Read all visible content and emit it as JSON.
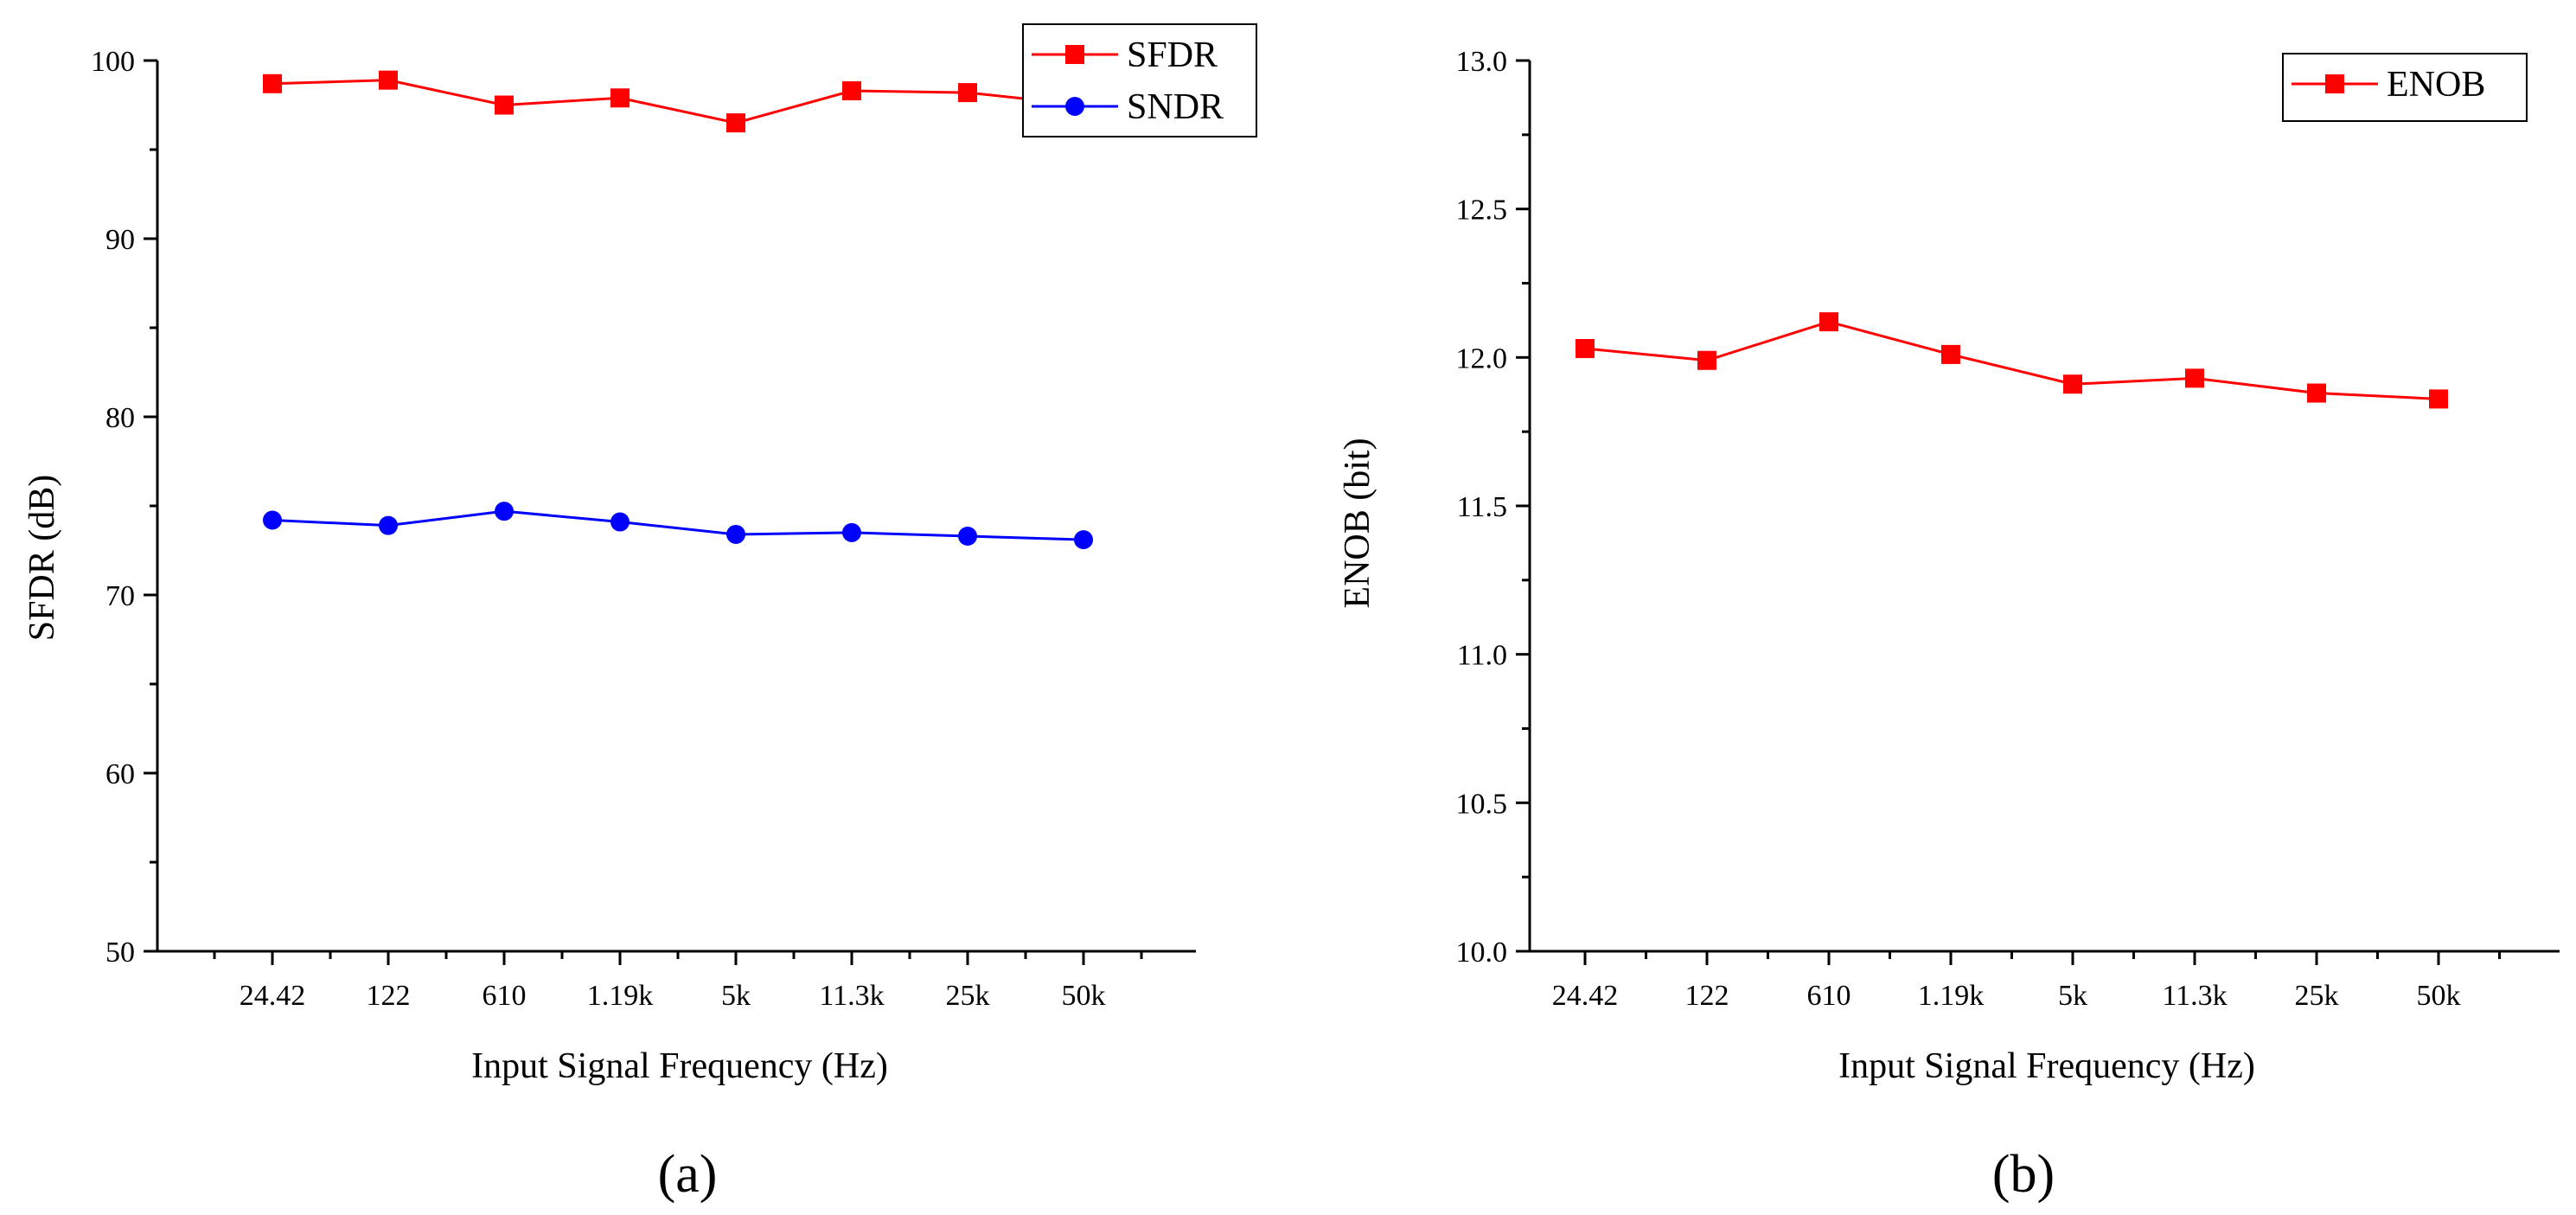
{
  "chart_data": [
    {
      "id": "a",
      "type": "line",
      "panel_label": "(a)",
      "categories": [
        "24.42",
        "122",
        "610",
        "1.19k",
        "5k",
        "11.3k",
        "25k",
        "50k"
      ],
      "xlabel": "Input Signal Frequency (Hz)",
      "ylabel": "SFDR (dB)",
      "ylim": [
        50,
        100
      ],
      "yticks": [
        50,
        60,
        70,
        80,
        90,
        100
      ],
      "grid": false,
      "legend": "top-right",
      "series": [
        {
          "name": "SFDR",
          "color": "#ff0000",
          "marker": "square",
          "values": [
            98.7,
            98.9,
            97.5,
            97.9,
            96.5,
            98.3,
            98.2,
            97.5
          ]
        },
        {
          "name": "SNDR",
          "color": "#0000ff",
          "marker": "circle",
          "values": [
            74.2,
            73.9,
            74.7,
            74.1,
            73.4,
            73.5,
            73.3,
            73.1
          ]
        }
      ]
    },
    {
      "id": "b",
      "type": "line",
      "panel_label": "(b)",
      "categories": [
        "24.42",
        "122",
        "610",
        "1.19k",
        "5k",
        "11.3k",
        "25k",
        "50k"
      ],
      "xlabel": "Input Signal Frequency (Hz)",
      "ylabel": "ENOB (bit)",
      "ylim": [
        10.0,
        13.0
      ],
      "yticks": [
        "10.0",
        "10.5",
        "11.0",
        "11.5",
        "12.0",
        "12.5",
        "13.0"
      ],
      "grid": false,
      "legend": "top-right",
      "series": [
        {
          "name": "ENOB",
          "color": "#ff0000",
          "marker": "square",
          "values": [
            12.03,
            11.99,
            12.12,
            12.01,
            11.91,
            11.93,
            11.88,
            11.86
          ]
        }
      ]
    }
  ]
}
